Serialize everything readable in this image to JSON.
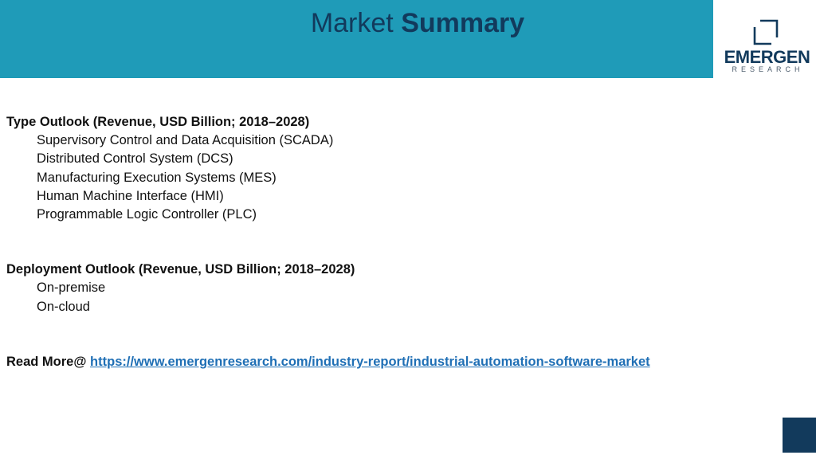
{
  "header": {
    "title_light": "Market",
    "title_bold": "Summary",
    "logo_name": "EMERGEN",
    "logo_sub": "RESEARCH"
  },
  "sections": [
    {
      "title": "Type Outlook (Revenue, USD Billion; 2018–2028)",
      "items": [
        "Supervisory Control and Data Acquisition (SCADA)",
        "Distributed Control System (DCS)",
        "Manufacturing Execution Systems (MES)",
        "Human Machine Interface (HMI)",
        "Programmable Logic Controller (PLC)"
      ]
    },
    {
      "title": "Deployment Outlook (Revenue, USD Billion; 2018–2028)",
      "items": [
        "On-premise",
        "On-cloud"
      ]
    }
  ],
  "read_more": {
    "label": "Read More@",
    "url": "https://www.emergenresearch.com/industry-report/industrial-automation-software-market"
  },
  "colors": {
    "header_bg": "#1f9bb8",
    "navy": "#123a5c",
    "link": "#1f6fb5"
  }
}
